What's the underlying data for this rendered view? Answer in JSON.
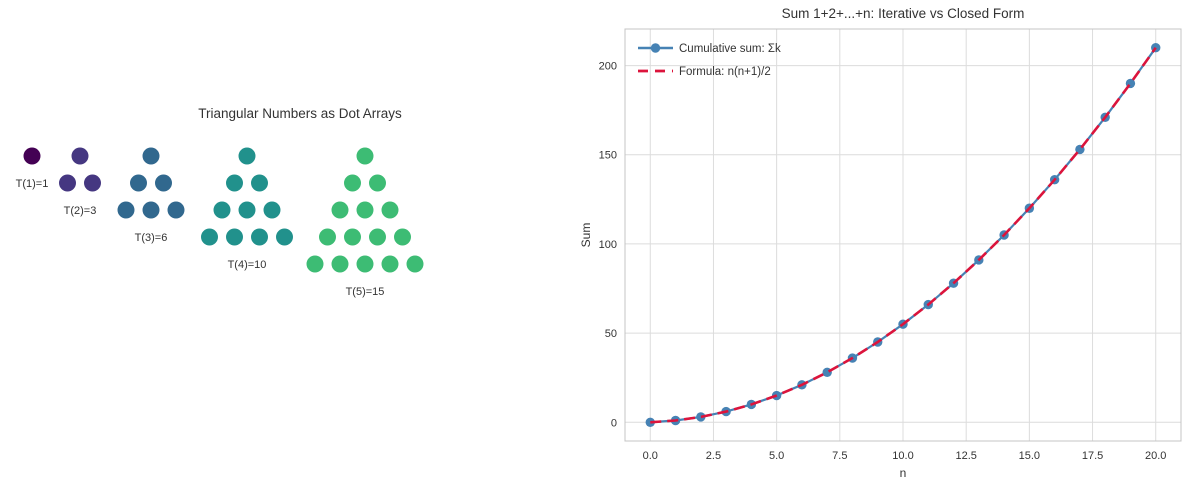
{
  "figure": {
    "background": "#ffffff",
    "text_color": "#333333",
    "grid_color": "#dcdcdc",
    "spine_color": "#c4c4c4"
  },
  "chart_data": [
    {
      "type": "scatter",
      "title": "Triangular Numbers as Dot Arrays",
      "groups": [
        {
          "k": 1,
          "value": 1,
          "label": "T(1)=1",
          "color": "#440154"
        },
        {
          "k": 2,
          "value": 3,
          "label": "T(2)=3",
          "color": "#453781"
        },
        {
          "k": 3,
          "value": 6,
          "label": "T(3)=6",
          "color": "#31688e"
        },
        {
          "k": 4,
          "value": 10,
          "label": "T(4)=10",
          "color": "#21918c"
        },
        {
          "k": 5,
          "value": 15,
          "label": "T(5)=15",
          "color": "#3dbc74"
        }
      ]
    },
    {
      "type": "line",
      "title": "Sum 1+2+...+n: Iterative vs Closed Form",
      "xlabel": "n",
      "ylabel": "Sum",
      "x": [
        0,
        1,
        2,
        3,
        4,
        5,
        6,
        7,
        8,
        9,
        10,
        11,
        12,
        13,
        14,
        15,
        16,
        17,
        18,
        19,
        20
      ],
      "series": [
        {
          "name": "Cumulative sum: Σk",
          "color": "#4682b4",
          "line_style": "solid",
          "marker": "circle",
          "values": [
            0,
            1,
            3,
            6,
            10,
            15,
            21,
            28,
            36,
            45,
            55,
            66,
            78,
            91,
            105,
            120,
            136,
            153,
            171,
            190,
            210
          ]
        },
        {
          "name": "Formula: n(n+1)/2",
          "color": "#dc143c",
          "line_style": "dashed",
          "marker": "none",
          "values": [
            0,
            1,
            3,
            6,
            10,
            15,
            21,
            28,
            36,
            45,
            55,
            66,
            78,
            91,
            105,
            120,
            136,
            153,
            171,
            190,
            210
          ]
        }
      ],
      "xticks": [
        {
          "value": 0,
          "label": "0.0"
        },
        {
          "value": 2.5,
          "label": "2.5"
        },
        {
          "value": 5,
          "label": "5.0"
        },
        {
          "value": 7.5,
          "label": "7.5"
        },
        {
          "value": 10,
          "label": "10.0"
        },
        {
          "value": 12.5,
          "label": "12.5"
        },
        {
          "value": 15,
          "label": "15.0"
        },
        {
          "value": 17.5,
          "label": "17.5"
        },
        {
          "value": 20,
          "label": "20.0"
        }
      ],
      "yticks": [
        {
          "value": 0,
          "label": "0"
        },
        {
          "value": 50,
          "label": "50"
        },
        {
          "value": 100,
          "label": "100"
        },
        {
          "value": 150,
          "label": "150"
        },
        {
          "value": 200,
          "label": "200"
        }
      ],
      "xlim": [
        -1,
        21
      ],
      "ylim": [
        -10.5,
        220.5
      ],
      "grid": true,
      "legend": {
        "position": "upper-left",
        "frame": false
      }
    }
  ]
}
